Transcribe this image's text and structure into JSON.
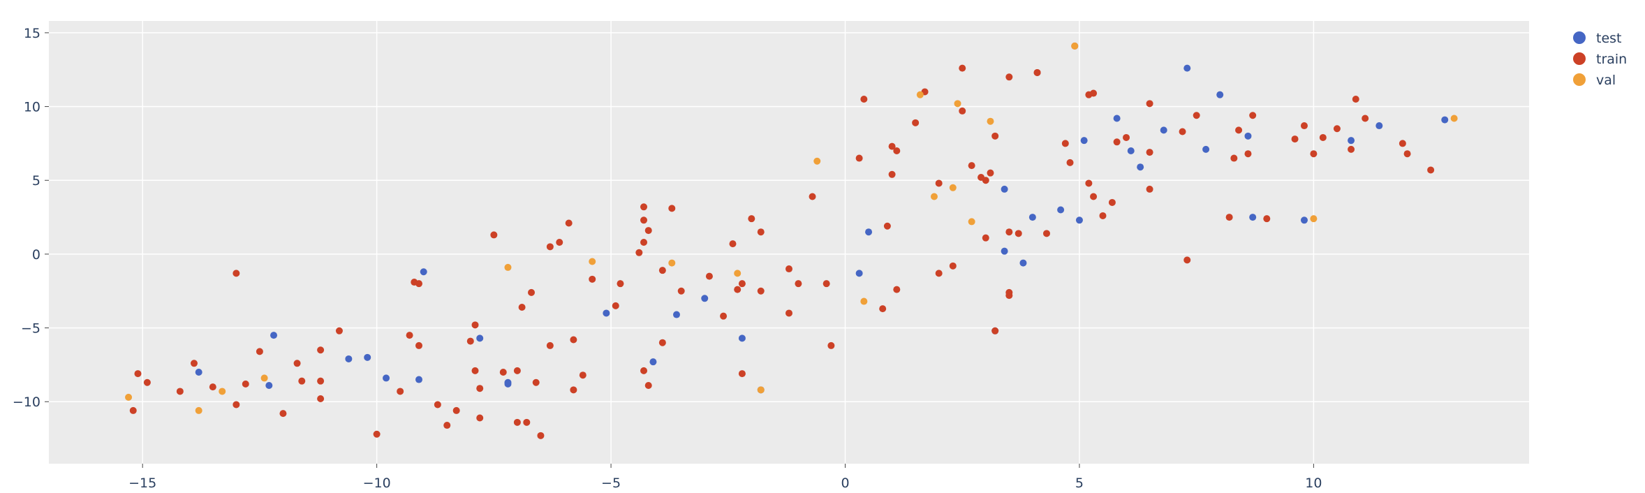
{
  "chart_data": {
    "type": "scatter",
    "title": "",
    "xlabel": "",
    "ylabel": "",
    "xlim": [
      -17,
      14.6
    ],
    "ylim": [
      -14.2,
      15.8
    ],
    "grid": true,
    "legend_placement": "top-right",
    "x_ticks": [
      -15,
      -10,
      -5,
      0,
      5,
      10
    ],
    "x_tick_labels": [
      "−15",
      "−10",
      "−5",
      "0",
      "5",
      "10"
    ],
    "y_ticks": [
      -10,
      -5,
      0,
      5,
      10,
      15
    ],
    "y_tick_labels": [
      "−10",
      "−5",
      "0",
      "5",
      "10",
      "15"
    ],
    "colors": {
      "plot_background": "#ebebeb",
      "grid": "#ffffff",
      "test": "#4566c4",
      "train": "#cc4126",
      "val": "#f0a038"
    },
    "series": [
      {
        "name": "test",
        "color": "#4566c4",
        "points": [
          [
            -13.8,
            -8.0
          ],
          [
            -12.3,
            -8.9
          ],
          [
            -12.2,
            -5.5
          ],
          [
            -10.6,
            -7.1
          ],
          [
            -10.2,
            -7.0
          ],
          [
            -9.8,
            -8.4
          ],
          [
            -9.1,
            -8.5
          ],
          [
            -9.0,
            -1.2
          ],
          [
            -7.8,
            -5.7
          ],
          [
            -7.2,
            -8.7
          ],
          [
            -7.2,
            -8.8
          ],
          [
            -5.1,
            -4.0
          ],
          [
            -4.1,
            -7.3
          ],
          [
            -3.6,
            -4.1
          ],
          [
            -3.0,
            -3.0
          ],
          [
            -2.2,
            -5.7
          ],
          [
            -1.8,
            -9.2
          ],
          [
            0.3,
            -1.3
          ],
          [
            0.5,
            1.5
          ],
          [
            3.2,
            -5.2
          ],
          [
            3.4,
            0.2
          ],
          [
            3.4,
            4.4
          ],
          [
            3.8,
            -0.6
          ],
          [
            4.0,
            2.5
          ],
          [
            4.6,
            3.0
          ],
          [
            5.0,
            2.3
          ],
          [
            5.1,
            7.7
          ],
          [
            5.8,
            9.2
          ],
          [
            6.1,
            7.0
          ],
          [
            6.3,
            5.9
          ],
          [
            6.8,
            8.4
          ],
          [
            7.3,
            12.6
          ],
          [
            7.7,
            7.1
          ],
          [
            8.0,
            10.8
          ],
          [
            8.6,
            8.0
          ],
          [
            8.7,
            2.5
          ],
          [
            9.8,
            2.3
          ],
          [
            10.8,
            7.7
          ],
          [
            11.4,
            8.7
          ],
          [
            12.8,
            9.1
          ]
        ]
      },
      {
        "name": "train",
        "color": "#cc4126",
        "points": [
          [
            -15.2,
            -10.6
          ],
          [
            -15.1,
            -8.1
          ],
          [
            -14.9,
            -8.7
          ],
          [
            -14.2,
            -9.3
          ],
          [
            -13.9,
            -7.4
          ],
          [
            -13.5,
            -9.0
          ],
          [
            -13.0,
            -10.2
          ],
          [
            -13.0,
            -1.3
          ],
          [
            -12.8,
            -8.8
          ],
          [
            -12.5,
            -6.6
          ],
          [
            -12.0,
            -10.8
          ],
          [
            -11.7,
            -7.4
          ],
          [
            -11.6,
            -8.6
          ],
          [
            -11.2,
            -6.5
          ],
          [
            -11.2,
            -8.6
          ],
          [
            -11.2,
            -9.8
          ],
          [
            -10.8,
            -5.2
          ],
          [
            -10.0,
            -12.2
          ],
          [
            -9.5,
            -9.3
          ],
          [
            -9.3,
            -5.5
          ],
          [
            -9.2,
            -1.9
          ],
          [
            -9.1,
            -2.0
          ],
          [
            -9.1,
            -6.2
          ],
          [
            -8.7,
            -10.2
          ],
          [
            -8.5,
            -11.6
          ],
          [
            -8.3,
            -10.6
          ],
          [
            -8.0,
            -5.9
          ],
          [
            -7.9,
            -4.8
          ],
          [
            -7.9,
            -7.9
          ],
          [
            -7.8,
            -11.1
          ],
          [
            -7.8,
            -9.1
          ],
          [
            -7.5,
            1.3
          ],
          [
            -7.3,
            -8.0
          ],
          [
            -7.0,
            -11.4
          ],
          [
            -7.0,
            -7.9
          ],
          [
            -6.9,
            -3.6
          ],
          [
            -6.8,
            -11.4
          ],
          [
            -6.7,
            -2.6
          ],
          [
            -6.6,
            -8.7
          ],
          [
            -6.5,
            -12.3
          ],
          [
            -6.3,
            0.5
          ],
          [
            -6.3,
            -6.2
          ],
          [
            -6.1,
            0.8
          ],
          [
            -5.9,
            2.1
          ],
          [
            -5.8,
            -5.8
          ],
          [
            -5.8,
            -9.2
          ],
          [
            -5.6,
            -8.2
          ],
          [
            -5.4,
            -1.7
          ],
          [
            -4.9,
            -3.5
          ],
          [
            -4.8,
            -2.0
          ],
          [
            -4.4,
            0.1
          ],
          [
            -4.3,
            3.2
          ],
          [
            -4.3,
            2.3
          ],
          [
            -4.3,
            0.8
          ],
          [
            -4.3,
            -7.9
          ],
          [
            -4.2,
            1.6
          ],
          [
            -4.2,
            -8.9
          ],
          [
            -3.9,
            -1.1
          ],
          [
            -3.9,
            -6.0
          ],
          [
            -3.7,
            3.1
          ],
          [
            -3.5,
            -2.5
          ],
          [
            -2.9,
            -1.5
          ],
          [
            -2.6,
            -4.2
          ],
          [
            -2.4,
            0.7
          ],
          [
            -2.3,
            -2.4
          ],
          [
            -2.2,
            -2.0
          ],
          [
            -2.2,
            -8.1
          ],
          [
            -2.0,
            2.4
          ],
          [
            -1.8,
            1.5
          ],
          [
            -1.8,
            -2.5
          ],
          [
            -1.2,
            -1.0
          ],
          [
            -1.2,
            -4.0
          ],
          [
            -1.0,
            -2.0
          ],
          [
            -0.7,
            3.9
          ],
          [
            -0.4,
            -2.0
          ],
          [
            -0.3,
            -6.2
          ],
          [
            0.3,
            6.5
          ],
          [
            0.4,
            10.5
          ],
          [
            0.8,
            -3.7
          ],
          [
            0.9,
            1.9
          ],
          [
            1.0,
            7.3
          ],
          [
            1.0,
            5.4
          ],
          [
            1.1,
            7.0
          ],
          [
            1.1,
            -2.4
          ],
          [
            1.5,
            8.9
          ],
          [
            1.7,
            11.0
          ],
          [
            2.0,
            4.8
          ],
          [
            2.0,
            -1.3
          ],
          [
            2.3,
            -0.8
          ],
          [
            2.5,
            12.6
          ],
          [
            2.5,
            9.7
          ],
          [
            2.7,
            6.0
          ],
          [
            2.9,
            5.2
          ],
          [
            3.0,
            5.0
          ],
          [
            3.0,
            1.1
          ],
          [
            3.1,
            5.5
          ],
          [
            3.2,
            8.0
          ],
          [
            3.2,
            -5.2
          ],
          [
            3.5,
            12.0
          ],
          [
            3.5,
            -2.8
          ],
          [
            3.5,
            -2.6
          ],
          [
            3.5,
            1.5
          ],
          [
            3.7,
            1.4
          ],
          [
            4.1,
            12.3
          ],
          [
            4.1,
            12.3
          ],
          [
            4.3,
            1.4
          ],
          [
            4.7,
            7.5
          ],
          [
            4.8,
            6.2
          ],
          [
            4.9,
            14.1
          ],
          [
            5.2,
            10.8
          ],
          [
            5.2,
            4.8
          ],
          [
            5.3,
            10.9
          ],
          [
            5.3,
            3.9
          ],
          [
            5.5,
            2.6
          ],
          [
            5.7,
            3.5
          ],
          [
            5.8,
            7.6
          ],
          [
            6.0,
            7.9
          ],
          [
            6.5,
            10.2
          ],
          [
            6.5,
            6.9
          ],
          [
            6.5,
            4.4
          ],
          [
            7.2,
            8.3
          ],
          [
            7.3,
            -0.4
          ],
          [
            7.5,
            9.4
          ],
          [
            8.2,
            2.5
          ],
          [
            8.3,
            6.5
          ],
          [
            8.4,
            8.4
          ],
          [
            8.6,
            6.8
          ],
          [
            8.7,
            9.4
          ],
          [
            9.0,
            2.4
          ],
          [
            9.6,
            7.8
          ],
          [
            9.8,
            8.7
          ],
          [
            10.0,
            6.8
          ],
          [
            10.2,
            7.9
          ],
          [
            10.5,
            8.5
          ],
          [
            10.8,
            7.1
          ],
          [
            10.9,
            10.5
          ],
          [
            11.1,
            9.2
          ],
          [
            11.9,
            7.5
          ],
          [
            12.0,
            6.8
          ],
          [
            12.5,
            5.7
          ]
        ]
      },
      {
        "name": "val",
        "color": "#f0a038",
        "points": [
          [
            -15.3,
            -9.7
          ],
          [
            -13.8,
            -10.6
          ],
          [
            -13.3,
            -9.3
          ],
          [
            -12.4,
            -8.4
          ],
          [
            -7.2,
            -0.9
          ],
          [
            -5.4,
            -0.5
          ],
          [
            -3.7,
            -0.6
          ],
          [
            -2.3,
            -1.3
          ],
          [
            -1.8,
            -9.2
          ],
          [
            -0.6,
            6.3
          ],
          [
            0.4,
            -3.2
          ],
          [
            1.6,
            10.8
          ],
          [
            1.9,
            3.9
          ],
          [
            2.3,
            4.5
          ],
          [
            2.4,
            10.2
          ],
          [
            2.7,
            2.2
          ],
          [
            3.1,
            9.0
          ],
          [
            4.9,
            14.1
          ],
          [
            10.0,
            2.4
          ],
          [
            13.0,
            9.2
          ]
        ]
      }
    ]
  }
}
